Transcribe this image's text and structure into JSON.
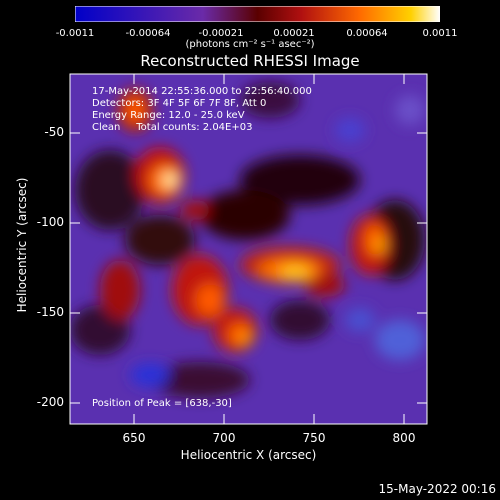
{
  "colorbar": {
    "ticks": [
      "-0.0011",
      "-0.00064",
      "-0.00021",
      "0.00021",
      "0.00064",
      "0.0011"
    ],
    "units_label": "(photons cm⁻² s⁻¹ asec⁻²)",
    "colors": [
      "#0000c8",
      "#6a2aa8",
      "#5a0000",
      "#b01010",
      "#ff6a00",
      "#ffd000",
      "#ffffff"
    ]
  },
  "chart_data": {
    "type": "heatmap",
    "title": "Reconstructed RHESSI Image",
    "xlabel": "Heliocentric X (arcsec)",
    "ylabel": "Heliocentric Y (arcsec)",
    "xlim": [
      617,
      813
    ],
    "ylim": [
      -213,
      -20
    ],
    "xticks": [
      "650",
      "700",
      "750",
      "800"
    ],
    "yticks": [
      "-50",
      "-100",
      "-150",
      "-200"
    ],
    "peak_position": [
      638,
      -30
    ],
    "value_range": [
      -0.0011,
      0.0011
    ],
    "annotations": [
      "17-May-2014 22:55:36.000 to 22:56:40.000",
      "Detectors: 3F 4F 5F 6F 7F 8F, Att 0",
      "Energy Range: 12.0 - 25.0 keV",
      "Clean     Total counts: 2.04E+03"
    ],
    "peak_label": "Position of Peak = [638,-30]"
  },
  "timestamp": "15-May-2022 00:16"
}
